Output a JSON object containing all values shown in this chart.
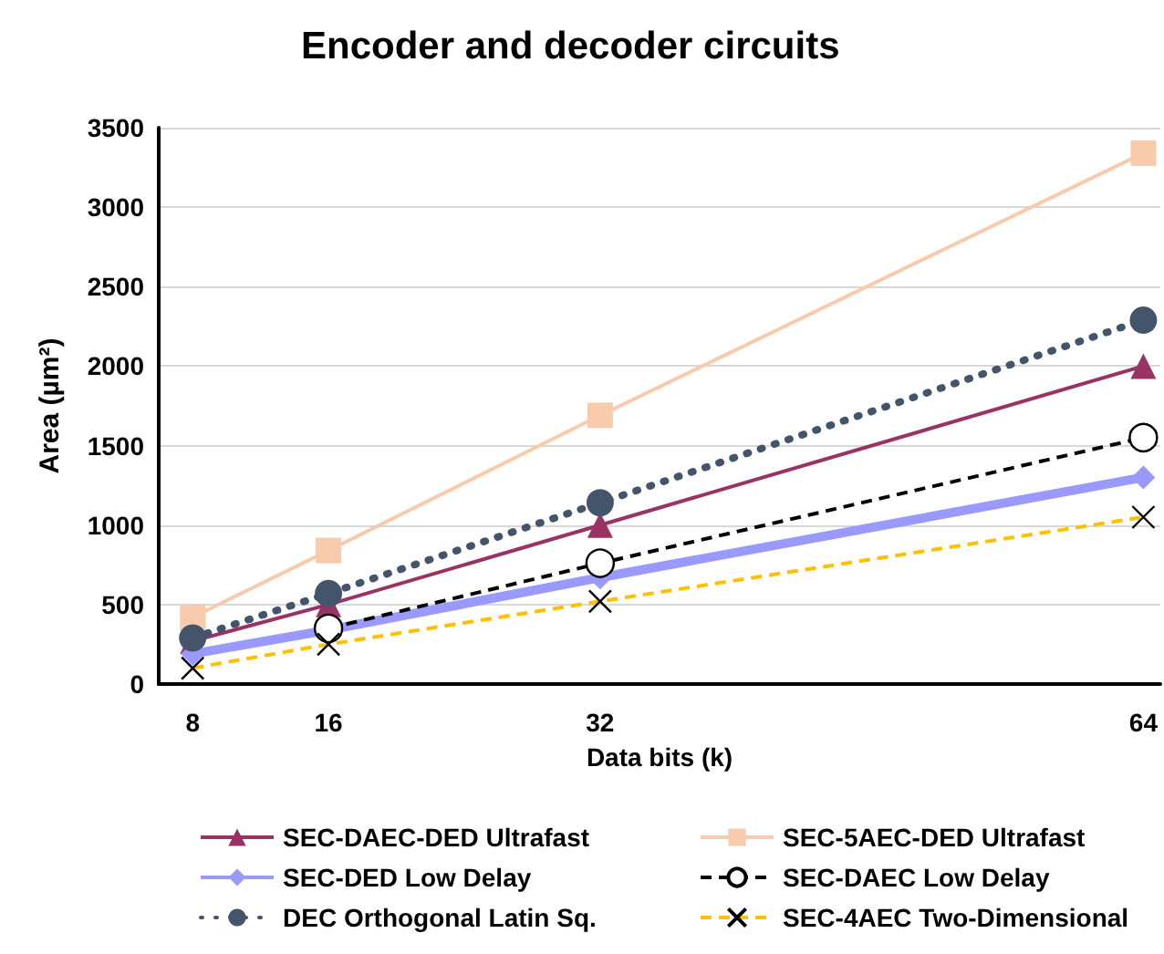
{
  "chart_data": {
    "type": "line",
    "title": "Encoder and decoder circuits",
    "xlabel": "Data bits (k)",
    "ylabel": "Area (µm²)",
    "x": [
      8,
      16,
      32,
      64
    ],
    "xlim": [
      6,
      65
    ],
    "xticks": [
      8,
      16,
      32,
      64
    ],
    "ylim": [
      0,
      3500
    ],
    "yticks": [
      0,
      500,
      1000,
      1500,
      2000,
      2500,
      3000,
      3500
    ],
    "grid": "y",
    "legend": "bottom",
    "series": [
      {
        "name": "SEC-DAEC-DED Ultrafast",
        "color": "#993366",
        "marker": "triangle",
        "line_style": "solid",
        "values": [
          270,
          500,
          1000,
          2000
        ]
      },
      {
        "name": "SEC-5AEC-DED Ultrafast",
        "color": "#f8cbad",
        "marker": "square",
        "line_style": "solid",
        "values": [
          420,
          840,
          1690,
          3340
        ]
      },
      {
        "name": "SEC-DED Low Delay",
        "color": "#9999ff",
        "marker": "diamond",
        "line_style": "solid",
        "values": [
          190,
          340,
          670,
          1300
        ]
      },
      {
        "name": "SEC-DAEC Low Delay",
        "color": "#000000",
        "marker": "circle",
        "line_style": "dashed",
        "values": [
          null,
          350,
          760,
          1550
        ]
      },
      {
        "name": "DEC Orthogonal Latin Sq.",
        "color": "#44546a",
        "marker": "circle",
        "line_style": "dotted",
        "values": [
          290,
          570,
          1140,
          2290
        ]
      },
      {
        "name": "SEC-4AEC Two-Dimensional",
        "color": "#ffc000",
        "marker": "cross",
        "line_style": "dashed",
        "values": [
          100,
          250,
          520,
          1050
        ]
      }
    ]
  }
}
